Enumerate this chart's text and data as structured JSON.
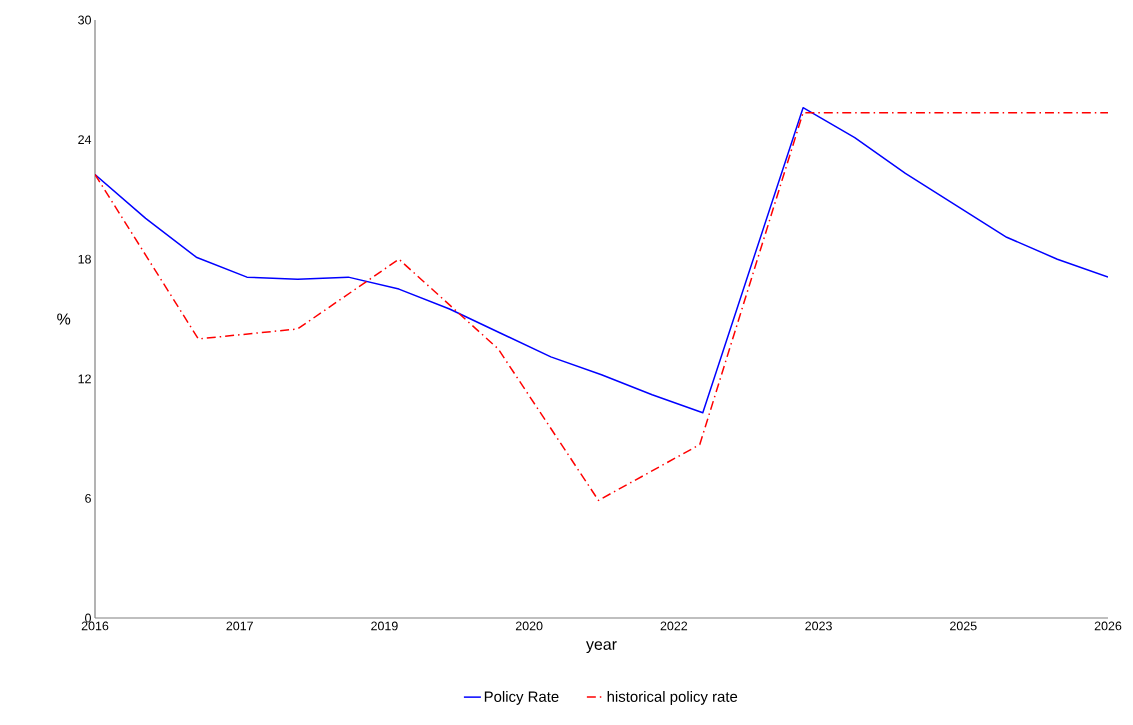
{
  "chart_data": {
    "type": "line",
    "xlabel": "year",
    "ylabel": "%",
    "xlim": [
      2016,
      2026
    ],
    "ylim": [
      0,
      30
    ],
    "xticks": [
      {
        "value": 2016,
        "label": "2016"
      },
      {
        "value": 2017.4286,
        "label": "2017"
      },
      {
        "value": 2018.8571,
        "label": "2019"
      },
      {
        "value": 2020.2857,
        "label": "2020"
      },
      {
        "value": 2021.7143,
        "label": "2022"
      },
      {
        "value": 2023.1429,
        "label": "2023"
      },
      {
        "value": 2024.5714,
        "label": "2025"
      },
      {
        "value": 2026,
        "label": "2026"
      }
    ],
    "yticks": [
      0,
      6,
      12,
      18,
      24,
      30
    ],
    "grid": false,
    "legend": "bottom",
    "series": [
      {
        "name": "Policy Rate",
        "color": "#0000ff",
        "line_style": "solid",
        "x": [
          2016,
          2016.5,
          2017,
          2017.5,
          2018,
          2018.5,
          2019,
          2019.5,
          2020,
          2020.5,
          2021,
          2021.5,
          2022,
          2022.99,
          2023.5,
          2024,
          2024.5,
          2025,
          2025.5,
          2026
        ],
        "values": [
          22.25,
          20.05,
          18.1,
          17.1,
          17.0,
          17.1,
          16.5,
          15.5,
          14.3,
          13.1,
          12.2,
          11.2,
          10.3,
          25.6,
          24.1,
          22.3,
          20.7,
          19.1,
          18.0,
          17.1
        ]
      },
      {
        "name": "historical policy rate",
        "color": "#ff0000",
        "line_style": "dashdot",
        "x": [
          2016,
          2017.02,
          2018.0,
          2019.0,
          2019.98,
          2020.97,
          2021.97,
          2022.99,
          2026
        ],
        "values": [
          22.25,
          14.0,
          14.5,
          18.0,
          13.5,
          5.9,
          8.7,
          25.35,
          25.35
        ]
      }
    ]
  }
}
